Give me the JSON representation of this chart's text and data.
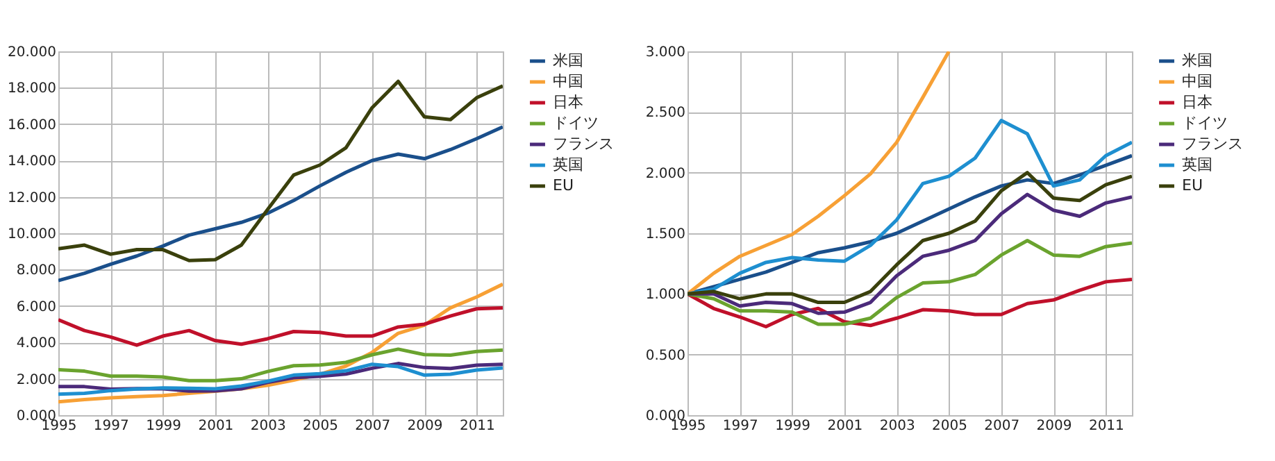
{
  "chart_data": [
    {
      "type": "line",
      "x": [
        1995,
        1996,
        1997,
        1998,
        1999,
        2000,
        2001,
        2002,
        2003,
        2004,
        2005,
        2006,
        2007,
        2008,
        2009,
        2010,
        2011,
        2012
      ],
      "series": [
        {
          "name": "米国",
          "color": "#1a4f8b",
          "values": [
            7.4,
            7.8,
            8.3,
            8.75,
            9.3,
            9.9,
            10.25,
            10.6,
            11.1,
            11.8,
            12.6,
            13.35,
            14.0,
            14.35,
            14.1,
            14.6,
            15.2,
            15.85
          ]
        },
        {
          "name": "中国",
          "color": "#f7a035",
          "values": [
            0.73,
            0.86,
            0.95,
            1.02,
            1.08,
            1.2,
            1.32,
            1.45,
            1.64,
            1.93,
            2.25,
            2.7,
            3.45,
            4.5,
            4.95,
            5.9,
            6.5,
            7.2
          ]
        },
        {
          "name": "日本",
          "color": "#c0102a",
          "values": [
            5.25,
            4.65,
            4.3,
            3.85,
            4.35,
            4.65,
            4.1,
            3.9,
            4.2,
            4.6,
            4.55,
            4.35,
            4.35,
            4.85,
            5.0,
            5.45,
            5.85,
            5.9
          ]
        },
        {
          "name": "ドイツ",
          "color": "#6aa32e",
          "values": [
            2.5,
            2.42,
            2.15,
            2.15,
            2.1,
            1.9,
            1.9,
            2.0,
            2.4,
            2.72,
            2.76,
            2.9,
            3.32,
            3.63,
            3.33,
            3.3,
            3.5,
            3.58
          ]
        },
        {
          "name": "フランス",
          "color": "#4b2a7a",
          "values": [
            1.57,
            1.57,
            1.43,
            1.46,
            1.45,
            1.33,
            1.34,
            1.45,
            1.8,
            2.06,
            2.14,
            2.26,
            2.58,
            2.84,
            2.62,
            2.57,
            2.75,
            2.8
          ]
        },
        {
          "name": "英国",
          "color": "#1e8fd0",
          "values": [
            1.15,
            1.2,
            1.35,
            1.44,
            1.5,
            1.48,
            1.45,
            1.6,
            1.86,
            2.2,
            2.28,
            2.44,
            2.8,
            2.67,
            2.2,
            2.25,
            2.48,
            2.6
          ]
        },
        {
          "name": "EU",
          "color": "#3a400c",
          "values": [
            9.15,
            9.35,
            8.85,
            9.1,
            9.1,
            8.5,
            8.55,
            9.35,
            11.3,
            13.2,
            13.75,
            14.7,
            16.9,
            18.35,
            16.4,
            16.25,
            17.45,
            18.1
          ]
        }
      ],
      "xlim": [
        1995,
        2012
      ],
      "xticks": [
        1995,
        1997,
        1999,
        2001,
        2003,
        2005,
        2007,
        2009,
        2011
      ],
      "ylim": [
        0,
        20
      ],
      "yticks": [
        {
          "value": 0,
          "label": "0.000"
        },
        {
          "value": 2,
          "label": "2.000"
        },
        {
          "value": 4,
          "label": "4.000"
        },
        {
          "value": 6,
          "label": "6.000"
        },
        {
          "value": 8,
          "label": "8.000"
        },
        {
          "value": 10,
          "label": "10.000"
        },
        {
          "value": 12,
          "label": "12.000"
        },
        {
          "value": 14,
          "label": "14.000"
        },
        {
          "value": 16,
          "label": "16.000"
        },
        {
          "value": 18,
          "label": "18.000"
        },
        {
          "value": 20,
          "label": "20.000"
        }
      ],
      "grid": true,
      "legend": "right",
      "marker": "none"
    },
    {
      "type": "line",
      "x": [
        1995,
        1996,
        1997,
        1998,
        1999,
        2000,
        2001,
        2002,
        2003,
        2004,
        2005,
        2006,
        2007,
        2008,
        2009,
        2010,
        2011,
        2012
      ],
      "series": [
        {
          "name": "米国",
          "color": "#1a4f8b",
          "values": [
            1,
            1.06,
            1.12,
            1.18,
            1.26,
            1.34,
            1.38,
            1.43,
            1.5,
            1.6,
            1.7,
            1.8,
            1.89,
            1.94,
            1.91,
            1.98,
            2.06,
            2.14
          ]
        },
        {
          "name": "中国",
          "color": "#f7a035",
          "values": [
            1,
            1.17,
            1.31,
            1.4,
            1.49,
            1.64,
            1.81,
            1.99,
            2.25,
            2.62,
            3.0,
            null,
            null,
            null,
            null,
            null,
            null,
            null
          ]
        },
        {
          "name": "日本",
          "color": "#c0102a",
          "values": [
            1,
            0.88,
            0.81,
            0.73,
            0.83,
            0.88,
            0.77,
            0.74,
            0.8,
            0.87,
            0.86,
            0.83,
            0.83,
            0.92,
            0.95,
            1.03,
            1.1,
            1.12
          ]
        },
        {
          "name": "ドイツ",
          "color": "#6aa32e",
          "values": [
            1,
            0.96,
            0.86,
            0.86,
            0.85,
            0.75,
            0.75,
            0.8,
            0.97,
            1.09,
            1.1,
            1.16,
            1.32,
            1.44,
            1.32,
            1.31,
            1.39,
            1.42
          ]
        },
        {
          "name": "フランス",
          "color": "#4b2a7a",
          "values": [
            1,
            1.0,
            0.9,
            0.93,
            0.92,
            0.84,
            0.85,
            0.93,
            1.15,
            1.31,
            1.36,
            1.44,
            1.66,
            1.82,
            1.69,
            1.64,
            1.75,
            1.8
          ]
        },
        {
          "name": "英国",
          "color": "#1e8fd0",
          "values": [
            1,
            1.04,
            1.17,
            1.26,
            1.3,
            1.28,
            1.27,
            1.4,
            1.61,
            1.91,
            1.97,
            2.12,
            2.43,
            2.32,
            1.89,
            1.94,
            2.14,
            2.25
          ]
        },
        {
          "name": "EU",
          "color": "#3a400c",
          "values": [
            1,
            1.02,
            0.96,
            1.0,
            1.0,
            0.93,
            0.93,
            1.02,
            1.24,
            1.44,
            1.5,
            1.6,
            1.85,
            2.0,
            1.79,
            1.77,
            1.9,
            1.97
          ]
        }
      ],
      "xlim": [
        1995,
        2012
      ],
      "xticks": [
        1995,
        1997,
        1999,
        2001,
        2003,
        2005,
        2007,
        2009,
        2011
      ],
      "ylim": [
        0,
        3
      ],
      "yticks": [
        {
          "value": 0,
          "label": "0.000"
        },
        {
          "value": 0.5,
          "label": "0.500"
        },
        {
          "value": 1,
          "label": "1.000"
        },
        {
          "value": 1.5,
          "label": "1.500"
        },
        {
          "value": 2,
          "label": "2.000"
        },
        {
          "value": 2.5,
          "label": "2.500"
        },
        {
          "value": 3,
          "label": "3.000"
        }
      ],
      "grid": true,
      "legend": "right",
      "marker": "none"
    }
  ]
}
